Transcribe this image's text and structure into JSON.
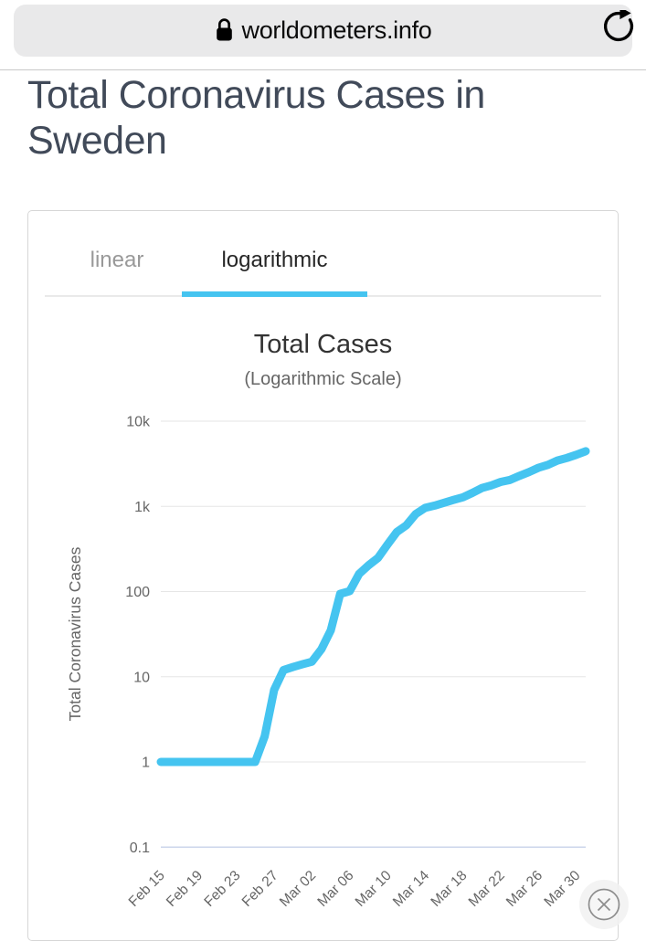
{
  "browser": {
    "url": "worldometers.info"
  },
  "page": {
    "title": "Total Coronavirus Cases in Sweden"
  },
  "chart_card": {
    "tabs": [
      {
        "label": "linear",
        "active": false
      },
      {
        "label": "logarithmic",
        "active": true
      }
    ]
  },
  "colors": {
    "accent_blue": "#45c4f0",
    "grid": "#e6e6e6",
    "axis_baseline": "#ccd6eb",
    "tick_text": "#666666",
    "chart_title_text": "#333333",
    "page_title_text": "#414a59",
    "inactive_tab": "#999999",
    "active_tab": "#262626",
    "close_icon_gray": "#8d8d8d"
  },
  "chart_data": {
    "type": "line",
    "title": "Total Cases",
    "subtitle": "(Logarithmic Scale)",
    "ylabel": "Total Coronavirus Cases",
    "xlabel": "",
    "yscale": "log",
    "ylim": [
      0.1,
      10000
    ],
    "grid": true,
    "legend_position": "none",
    "yticks": [
      "10k",
      "1k",
      "100",
      "10",
      "1",
      "0.1"
    ],
    "ytick_values": [
      10000,
      1000,
      100,
      10,
      1,
      0.1
    ],
    "xtick_labels": [
      "Feb 15",
      "Feb 19",
      "Feb 23",
      "Feb 27",
      "Mar 02",
      "Mar 06",
      "Mar 10",
      "Mar 14",
      "Mar 18",
      "Mar 22",
      "Mar 26",
      "Mar 30"
    ],
    "x": [
      "Feb 15",
      "Feb 16",
      "Feb 17",
      "Feb 18",
      "Feb 19",
      "Feb 20",
      "Feb 21",
      "Feb 22",
      "Feb 23",
      "Feb 24",
      "Feb 25",
      "Feb 26",
      "Feb 27",
      "Feb 28",
      "Feb 29",
      "Mar 01",
      "Mar 02",
      "Mar 03",
      "Mar 04",
      "Mar 05",
      "Mar 06",
      "Mar 07",
      "Mar 08",
      "Mar 09",
      "Mar 10",
      "Mar 11",
      "Mar 12",
      "Mar 13",
      "Mar 14",
      "Mar 15",
      "Mar 16",
      "Mar 17",
      "Mar 18",
      "Mar 19",
      "Mar 20",
      "Mar 21",
      "Mar 22",
      "Mar 23",
      "Mar 24",
      "Mar 25",
      "Mar 26",
      "Mar 27",
      "Mar 28",
      "Mar 29",
      "Mar 30",
      "Mar 31"
    ],
    "series": [
      {
        "name": "Total Coronavirus Cases",
        "color": "#45c4f0",
        "values": [
          1,
          1,
          1,
          1,
          1,
          1,
          1,
          1,
          1,
          1,
          1,
          2,
          7,
          12,
          13,
          14,
          15,
          21,
          35,
          94,
          101,
          161,
          203,
          248,
          355,
          500,
          599,
          814,
          961,
          1022,
          1103,
          1190,
          1279,
          1439,
          1639,
          1763,
          1934,
          2046,
          2286,
          2526,
          2840,
          3069,
          3447,
          3700,
          4028,
          4435
        ]
      }
    ]
  }
}
